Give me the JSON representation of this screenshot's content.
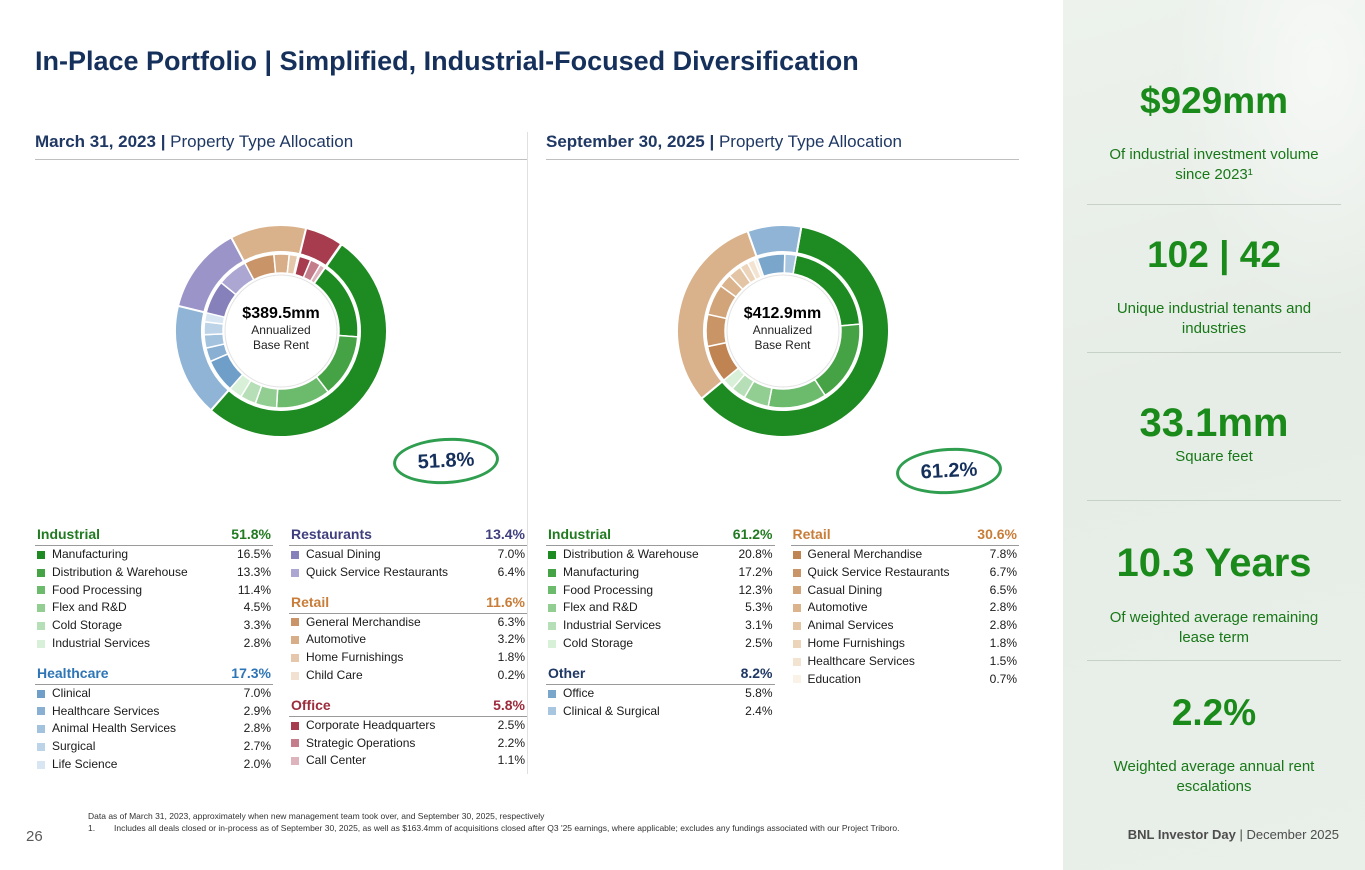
{
  "title": {
    "bold": "In-Place Portfolio",
    "rest": " | Simplified, Industrial-Focused Diversification"
  },
  "chart_data": [
    {
      "type": "pie",
      "subtype": "double-ring-donut",
      "header_bold": "March 31, 2023 |",
      "header_rest": " Property Type Allocation",
      "center": {
        "value": "$389.5mm",
        "line1": "Annualized",
        "line2": "Base Rent"
      },
      "callout": "51.8%",
      "start_angle": 35,
      "legend_position": "below",
      "groups": [
        {
          "name": "Industrial",
          "total": 51.8,
          "color": "#1e8a22",
          "header_color": "#217a21",
          "items": [
            {
              "label": "Manufacturing",
              "value": 16.5,
              "color": "#1e8a22"
            },
            {
              "label": "Distribution & Warehouse",
              "value": 13.3,
              "color": "#45a345"
            },
            {
              "label": "Food Processing",
              "value": 11.4,
              "color": "#6cba6c"
            },
            {
              "label": "Flex and R&D",
              "value": 4.5,
              "color": "#92cd92"
            },
            {
              "label": "Cold Storage",
              "value": 3.3,
              "color": "#b7dfb7"
            },
            {
              "label": "Industrial Services",
              "value": 2.8,
              "color": "#d8efd8"
            }
          ]
        },
        {
          "name": "Healthcare",
          "total": 17.3,
          "color": "#8fb4d6",
          "header_color": "#2e75b6",
          "items": [
            {
              "label": "Clinical",
              "value": 7.0,
              "color": "#6f9fc8"
            },
            {
              "label": "Healthcare Services",
              "value": 2.9,
              "color": "#89b0d2"
            },
            {
              "label": "Animal Health Services",
              "value": 2.8,
              "color": "#a3c2dd"
            },
            {
              "label": "Surgical",
              "value": 2.7,
              "color": "#bdd4e8"
            },
            {
              "label": "Life Science",
              "value": 2.0,
              "color": "#d7e6f2"
            }
          ]
        },
        {
          "name": "Restaurants",
          "total": 13.4,
          "color": "#9a94c8",
          "header_color": "#403f7e",
          "items": [
            {
              "label": "Casual Dining",
              "value": 7.0,
              "color": "#8680bb"
            },
            {
              "label": "Quick Service Restaurants",
              "value": 6.4,
              "color": "#aba6d2"
            }
          ]
        },
        {
          "name": "Retail",
          "total": 11.6,
          "color": "#d9b28c",
          "header_color": "#c87d39",
          "items": [
            {
              "label": "General Merchandise",
              "value": 6.3,
              "color": "#c89468"
            },
            {
              "label": "Automotive",
              "value": 3.2,
              "color": "#d7ae88"
            },
            {
              "label": "Home Furnishings",
              "value": 1.8,
              "color": "#e5c8ab"
            },
            {
              "label": "Child Care",
              "value": 0.2,
              "color": "#f2e1d0"
            }
          ]
        },
        {
          "name": "Office",
          "total": 5.8,
          "color": "#a63c4e",
          "header_color": "#9c2b3b",
          "items": [
            {
              "label": "Corporate Headquarters",
              "value": 2.5,
              "color": "#a63c4e"
            },
            {
              "label": "Strategic Operations",
              "value": 2.2,
              "color": "#c47d8a"
            },
            {
              "label": "Call Center",
              "value": 1.1,
              "color": "#ddb3bc"
            }
          ]
        }
      ],
      "legend_columns": [
        [
          0,
          1
        ],
        [
          2,
          3,
          4
        ]
      ]
    },
    {
      "type": "pie",
      "subtype": "double-ring-donut",
      "header_bold": "September 30, 2025 |",
      "header_rest": " Property Type Allocation",
      "center": {
        "value": "$412.9mm",
        "line1": "Annualized",
        "line2": "Base Rent"
      },
      "callout": "61.2%",
      "start_angle": 10,
      "legend_position": "below",
      "groups": [
        {
          "name": "Industrial",
          "total": 61.2,
          "color": "#1e8a22",
          "header_color": "#217a21",
          "items": [
            {
              "label": "Distribution & Warehouse",
              "value": 20.8,
              "color": "#1e8a22"
            },
            {
              "label": "Manufacturing",
              "value": 17.2,
              "color": "#45a345"
            },
            {
              "label": "Food Processing",
              "value": 12.3,
              "color": "#6cba6c"
            },
            {
              "label": "Flex and R&D",
              "value": 5.3,
              "color": "#92cd92"
            },
            {
              "label": "Industrial Services",
              "value": 3.1,
              "color": "#b7dfb7"
            },
            {
              "label": "Cold Storage",
              "value": 2.5,
              "color": "#d8efd8"
            }
          ]
        },
        {
          "name": "Retail",
          "total": 30.6,
          "color": "#d9b28c",
          "header_color": "#c87d39",
          "items": [
            {
              "label": "General Merchandise",
              "value": 7.8,
              "color": "#c08352"
            },
            {
              "label": "Quick Service Restaurants",
              "value": 6.7,
              "color": "#c99466"
            },
            {
              "label": "Casual Dining",
              "value": 6.5,
              "color": "#d2a47a"
            },
            {
              "label": "Automotive",
              "value": 2.8,
              "color": "#dbb48e"
            },
            {
              "label": "Animal Services",
              "value": 2.8,
              "color": "#e3c4a4"
            },
            {
              "label": "Home Furnishings",
              "value": 1.8,
              "color": "#ecd4ba"
            },
            {
              "label": "Healthcare Services",
              "value": 1.5,
              "color": "#f3e3d1"
            },
            {
              "label": "Education",
              "value": 0.7,
              "color": "#faf1e7"
            }
          ]
        },
        {
          "name": "Other",
          "total": 8.2,
          "color": "#8fb4d6",
          "header_color": "#1f3864",
          "items": [
            {
              "label": "Office",
              "value": 5.8,
              "color": "#7ba6cc"
            },
            {
              "label": "Clinical & Surgical",
              "value": 2.4,
              "color": "#a9c6e0"
            }
          ]
        }
      ],
      "legend_columns": [
        [
          0,
          2
        ],
        [
          1
        ]
      ]
    }
  ],
  "sidebar": {
    "stats": [
      {
        "value": "$929mm",
        "label": "Of industrial investment volume since 2023¹"
      },
      {
        "value": "102 | 42",
        "label": "Unique industrial tenants and industries"
      },
      {
        "value": "33.1mm",
        "label": "Square feet"
      },
      {
        "value": "10.3 Years",
        "label": "Of weighted average remaining lease term"
      },
      {
        "value": "2.2%",
        "label": "Weighted average annual rent escalations"
      }
    ]
  },
  "footnotes": {
    "line1": "Data as of March 31, 2023, approximately when new management team took over, and September 30, 2025, respectively",
    "line2_num": "1.",
    "line2": "Includes all deals closed or in-process as of September 30, 2025, as well as $163.4mm of acquisitions closed after Q3 '25 earnings, where applicable; excludes any fundings associated with our Project Triboro."
  },
  "page_number": "26",
  "footer": {
    "bold": "BNL Investor Day",
    "rest": " | December 2025"
  },
  "colors": {
    "accent_green": "#1e8a22",
    "navy": "#16305c",
    "callout_stroke": "#2f9e4f",
    "sidebar_bg": "#e9efe9"
  }
}
